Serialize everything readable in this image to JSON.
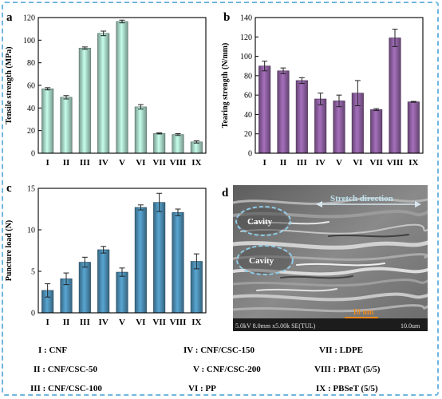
{
  "chart_data": [
    {
      "type": "bar",
      "panel": "a",
      "ylabel": "Tensile strength (MPa)",
      "ylim": [
        0,
        120
      ],
      "yticks": [
        0,
        20,
        40,
        60,
        80,
        100,
        120
      ],
      "categories": [
        "I",
        "II",
        "III",
        "IV",
        "V",
        "VI",
        "VII",
        "VIII",
        "IX"
      ],
      "values": [
        57,
        49.5,
        93,
        106,
        116.5,
        41,
        17.5,
        16.5,
        10
      ],
      "errors": [
        1,
        1.5,
        1,
        2,
        1.2,
        2,
        0.5,
        0.8,
        1
      ],
      "color": "#a7d6c6"
    },
    {
      "type": "bar",
      "panel": "b",
      "ylabel": "Tearing strength (N/mm)",
      "ylim": [
        0,
        140
      ],
      "yticks": [
        0,
        20,
        40,
        60,
        80,
        100,
        120,
        140
      ],
      "categories": [
        "I",
        "II",
        "III",
        "IV",
        "V",
        "VI",
        "VII",
        "VIII",
        "IX"
      ],
      "values": [
        90,
        85,
        75,
        56,
        54,
        62,
        45,
        119,
        53
      ],
      "errors": [
        5,
        3,
        3,
        6,
        6,
        13,
        1,
        9,
        0.5
      ],
      "color": "#8d5fa0"
    },
    {
      "type": "bar",
      "panel": "c",
      "ylabel": "Puncture load (N)",
      "ylim": [
        0,
        15
      ],
      "yticks": [
        0,
        5,
        10,
        15
      ],
      "categories": [
        "I",
        "II",
        "III",
        "IV",
        "V",
        "VI",
        "VII",
        "VIII",
        "IX"
      ],
      "values": [
        2.7,
        4.1,
        6.1,
        7.6,
        4.9,
        12.7,
        13.3,
        12.1,
        6.2
      ],
      "errors": [
        0.8,
        0.7,
        0.6,
        0.4,
        0.5,
        0.3,
        1.1,
        0.4,
        0.9
      ],
      "color": "#4b8db3"
    }
  ],
  "panel_d": {
    "letter": "d",
    "cavity1": "Cavity",
    "cavity2": "Cavity",
    "direction": "Stretch direction",
    "scale_label": "10 um",
    "status_left": "5.0kV 8.0mm x5.00k SE(TUL)",
    "status_right": "10.0um"
  },
  "legend": [
    "I : CNF",
    "IV : CNF/CSC-150",
    "VII : LDPE",
    "II : CNF/CSC-50",
    "V : CNF/CSC-200",
    "VIII : PBAT (5/5)",
    "III : CNF/CSC-100",
    "VI : PP",
    "IX : PBSeT (5/5)"
  ]
}
